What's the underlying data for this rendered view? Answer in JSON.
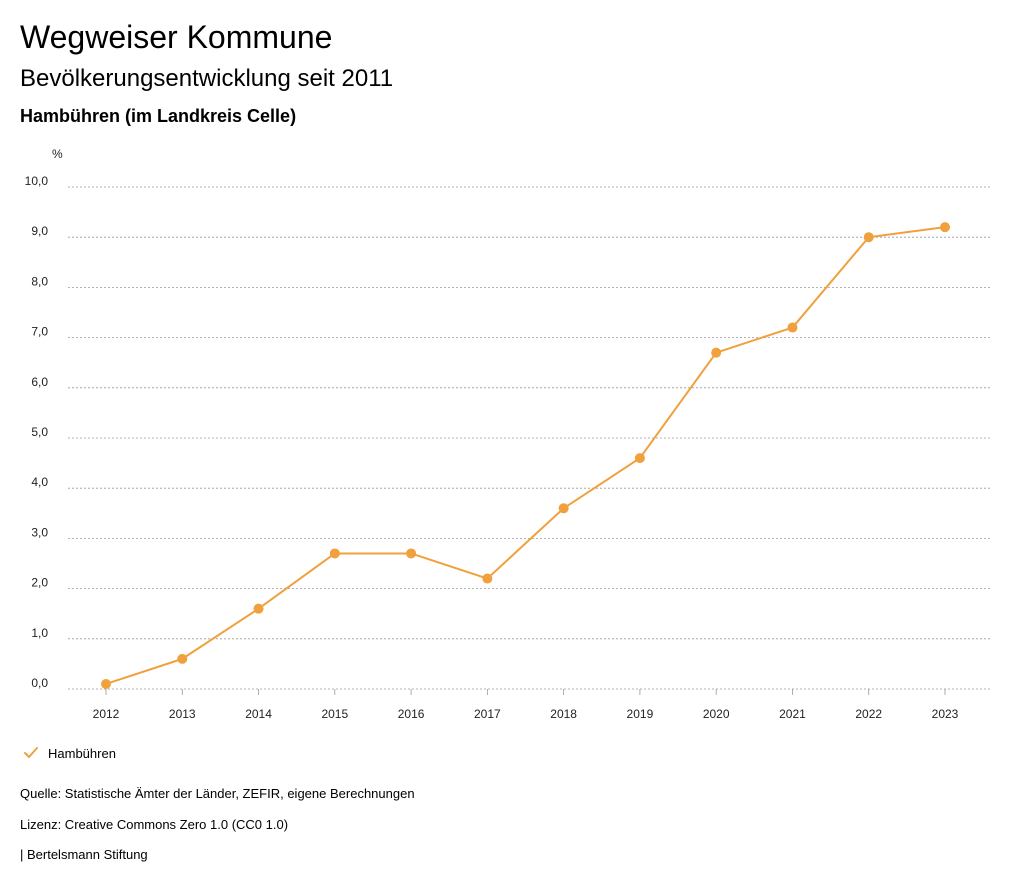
{
  "header": {
    "title": "Wegweiser Kommune",
    "subtitle": "Bevölkerungsentwicklung seit 2011",
    "region": "Hambühren (im Landkreis Celle)"
  },
  "chart_data": {
    "type": "line",
    "title": "Bevölkerungsentwicklung seit 2011",
    "xlabel": "",
    "ylabel": "%",
    "categories": [
      "2012",
      "2013",
      "2014",
      "2015",
      "2016",
      "2017",
      "2018",
      "2019",
      "2020",
      "2021",
      "2022",
      "2023"
    ],
    "ylim": [
      0,
      10
    ],
    "yticks": [
      0,
      1,
      2,
      3,
      4,
      5,
      6,
      7,
      8,
      9,
      10
    ],
    "ytick_labels": [
      "0,0",
      "1,0",
      "2,0",
      "3,0",
      "4,0",
      "5,0",
      "6,0",
      "7,0",
      "8,0",
      "9,0",
      "10,0"
    ],
    "grid": true,
    "legend_position": "bottom-left",
    "series": [
      {
        "name": "Hambühren",
        "color": "#f0a03c",
        "values": [
          0.1,
          0.6,
          1.6,
          2.7,
          2.7,
          2.2,
          3.6,
          4.6,
          6.7,
          7.2,
          9.0,
          9.2
        ]
      }
    ]
  },
  "legend": {
    "label": "Hambühren",
    "icon": "checkmark-icon"
  },
  "footer": {
    "source": "Quelle: Statistische Ämter der Länder, ZEFIR, eigene Berechnungen",
    "license": "Lizenz: Creative Commons Zero 1.0 (CC0 1.0)",
    "publisher": "| Bertelsmann Stiftung"
  }
}
